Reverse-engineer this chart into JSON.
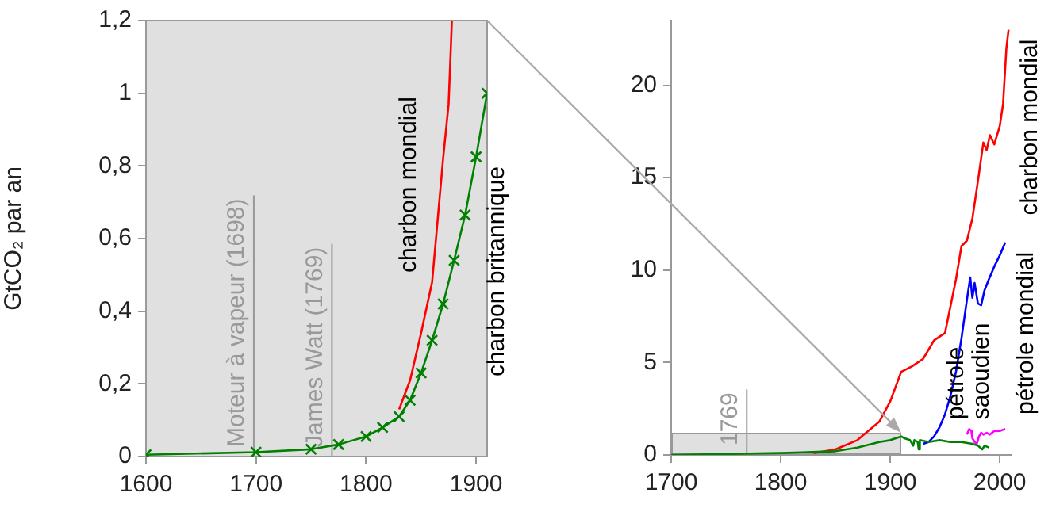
{
  "chart_data": [
    {
      "type": "line",
      "ylabel": "GtCO₂ par an",
      "xlim": [
        1600,
        1910
      ],
      "xticks": [
        1600,
        1700,
        1800,
        1900
      ],
      "ylim": [
        0,
        1.2
      ],
      "yticks": [
        0,
        {
          "value": 0.2,
          "label": "0,2"
        },
        {
          "value": 0.4,
          "label": "0,4"
        },
        {
          "value": 0.6,
          "label": "0,6"
        },
        {
          "value": 0.8,
          "label": "0,8"
        },
        1,
        {
          "value": 1.2,
          "label": "1,2"
        }
      ],
      "grid": false,
      "ref_lines": [
        {
          "axis": "x",
          "value": 1698,
          "label": "Moteur à vapeur (1698)",
          "color": "#999999"
        },
        {
          "axis": "x",
          "value": 1769,
          "label": "James Watt (1769)",
          "color": "#999999"
        }
      ],
      "series": [
        {
          "name": "charbon mondial",
          "color": "#ff0000",
          "marker": "none",
          "x": [
            1830,
            1840,
            1850,
            1860,
            1870,
            1875,
            1878
          ],
          "values": [
            0.13,
            0.21,
            0.34,
            0.48,
            0.82,
            0.97,
            1.2
          ]
        },
        {
          "name": "charbon britannique",
          "color": "#008000",
          "marker": "cross",
          "x": [
            1600,
            1700,
            1750,
            1775,
            1800,
            1815,
            1830,
            1840,
            1850,
            1860,
            1870,
            1880,
            1890,
            1900,
            1910
          ],
          "values": [
            0.005,
            0.012,
            0.02,
            0.033,
            0.055,
            0.08,
            0.11,
            0.155,
            0.23,
            0.32,
            0.42,
            0.54,
            0.665,
            0.825,
            1.0
          ]
        }
      ]
    },
    {
      "type": "line",
      "xlim": [
        1700,
        2010
      ],
      "xticks": [
        1700,
        1800,
        1900,
        2000
      ],
      "ylim": [
        0,
        23.5
      ],
      "yticks": [
        0,
        5,
        10,
        15,
        20
      ],
      "grid": false,
      "ref_lines": [
        {
          "axis": "x",
          "value": 1769,
          "label": "1769",
          "color": "#999999"
        }
      ],
      "series": [
        {
          "color": "#008000",
          "marker": "none",
          "x": [
            1700,
            1800,
            1850,
            1870,
            1890,
            1900,
            1910,
            1913,
            1918,
            1921,
            1922,
            1925,
            1926,
            1927,
            1935,
            1945,
            1955,
            1965,
            1975,
            1980,
            1984,
            1986,
            1990
          ],
          "values": [
            0,
            0.1,
            0.2,
            0.4,
            0.7,
            0.8,
            1.0,
            0.9,
            0.8,
            0.5,
            0.8,
            0.7,
            0.3,
            0.8,
            0.7,
            0.8,
            0.7,
            0.7,
            0.6,
            0.5,
            0.3,
            0.5,
            0.4
          ]
        },
        {
          "name": "charbon mondial",
          "color": "#ff0000",
          "marker": "none",
          "x": [
            1830,
            1850,
            1870,
            1890,
            1900,
            1910,
            1920,
            1930,
            1940,
            1950,
            1960,
            1965,
            1970,
            1975,
            1980,
            1985,
            1988,
            1991,
            1995,
            2000,
            2003,
            2006,
            2008
          ],
          "values": [
            0.1,
            0.3,
            0.8,
            1.8,
            2.9,
            4.5,
            4.8,
            5.2,
            6.2,
            6.6,
            9.5,
            11.3,
            11.6,
            12.8,
            14.8,
            16.9,
            16.5,
            17.3,
            16.8,
            17.8,
            19.0,
            22.0,
            23.0
          ]
        },
        {
          "name": "pétrole mondial",
          "color": "#0000ff",
          "marker": "none",
          "x": [
            1930,
            1935,
            1940,
            1945,
            1950,
            1955,
            1960,
            1965,
            1970,
            1973,
            1975,
            1977,
            1980,
            1983,
            1986,
            1990,
            1995,
            2000,
            2005
          ],
          "values": [
            0.6,
            0.7,
            1.0,
            1.5,
            2.2,
            3.2,
            4.5,
            6.3,
            8.4,
            9.6,
            8.5,
            9.3,
            8.2,
            8.1,
            8.9,
            9.5,
            10.2,
            10.8,
            11.5
          ]
        },
        {
          "name": "pétrole\nsaoudien",
          "color": "#ff00ff",
          "marker": "none",
          "x": [
            1970,
            1972,
            1974,
            1975,
            1977,
            1979,
            1981,
            1983,
            1985,
            1988,
            1991,
            1995,
            2000,
            2005
          ],
          "values": [
            1.1,
            1.4,
            1.3,
            0.9,
            0.7,
            0.6,
            1.0,
            1.2,
            1.1,
            1.2,
            1.1,
            1.3,
            1.3,
            1.4
          ]
        }
      ]
    }
  ]
}
